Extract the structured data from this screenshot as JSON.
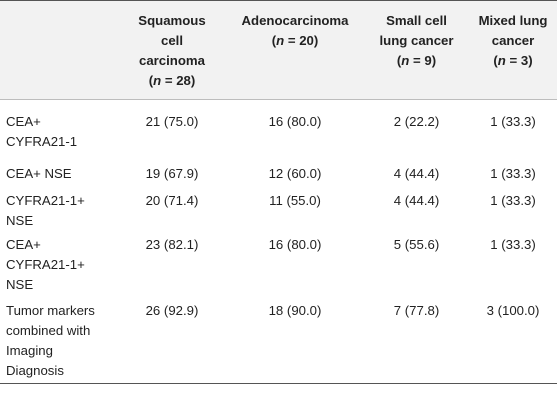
{
  "table": {
    "header": {
      "col1": {
        "line1": "Squamous",
        "line2": "cell",
        "line3": "carcinoma",
        "n_pre": "(",
        "n_var": "n",
        "n_post": " = 28)"
      },
      "col2": {
        "line1": "Adenocarcinoma",
        "n_pre": "(",
        "n_var": "n",
        "n_post": " = 20)"
      },
      "col3": {
        "line1": "Small cell",
        "line2": "lung cancer",
        "n_pre": "(",
        "n_var": "n",
        "n_post": " = 9)"
      },
      "col4": {
        "line1": "Mixed lung",
        "line2": "cancer",
        "n_pre": "(",
        "n_var": "n",
        "n_post": " = 3)"
      }
    },
    "rows": [
      {
        "label_lines": [
          "CEA+",
          "CYFRA21-1"
        ],
        "values": [
          "21 (75.0)",
          "16 (80.0)",
          "2 (22.2)",
          "1 (33.3)"
        ]
      },
      {
        "label_lines": [
          "CEA+ NSE"
        ],
        "values": [
          "19 (67.9)",
          "12 (60.0)",
          "4 (44.4)",
          "1 (33.3)"
        ]
      },
      {
        "label_lines": [
          "CYFRA21-1+",
          "NSE"
        ],
        "values": [
          "20 (71.4)",
          "11 (55.0)",
          "4 (44.4)",
          "1 (33.3)"
        ]
      },
      {
        "label_lines": [
          "CEA+",
          "CYFRA21-1+",
          "NSE"
        ],
        "values": [
          "23 (82.1)",
          "16 (80.0)",
          "5 (55.6)",
          "1 (33.3)"
        ]
      },
      {
        "label_lines": [
          "Tumor markers",
          "combined with",
          "Imaging",
          "Diagnosis"
        ],
        "values": [
          "26 (92.9)",
          "18 (90.0)",
          "7 (77.8)",
          "3 (100.0)"
        ]
      }
    ]
  }
}
